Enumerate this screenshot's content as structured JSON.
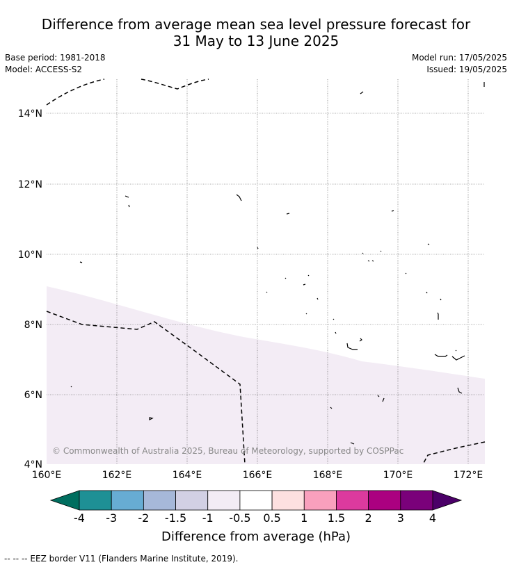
{
  "title_line1": "Difference from average mean sea level pressure forecast for",
  "title_line2": "31 May to 13 June 2025",
  "base_period": "Base period: 1981-2018",
  "model": "Model: ACCESS-S2",
  "model_run": "Model run: 17/05/2025",
  "issued": "Issued: 19/05/2025",
  "map": {
    "lon_range": [
      160,
      172.5
    ],
    "lat_range": [
      4,
      15
    ],
    "lat_ticks": [
      "14°N",
      "12°N",
      "10°N",
      "8°N",
      "6°N",
      "4°N"
    ],
    "lon_ticks": [
      "160°E",
      "162°E",
      "164°E",
      "166°E",
      "168°E",
      "170°E",
      "172°E"
    ],
    "copyright": "© Commonwealth of Australia 2025, Bureau of Meteorology, supported by COSPPac",
    "shaded_region": {
      "category": "-1 to -0.5",
      "color": "#f3ecf5"
    },
    "eez_style": "dashed black"
  },
  "colorbar": {
    "labels": [
      "-4",
      "-3",
      "-2",
      "-1.5",
      "-1",
      "-0.5",
      "0.5",
      "1",
      "1.5",
      "2",
      "3",
      "4"
    ],
    "colors": [
      "#1e9095",
      "#67acd3",
      "#a6b8d9",
      "#d2d0e4",
      "#f3ecf5",
      "#ffffff",
      "#fde0e0",
      "#f9a0bd",
      "#dc3a9e",
      "#ab0080",
      "#7a017a"
    ],
    "under_color": "#006e5f",
    "over_color": "#4b0068",
    "title": "Difference from average (hPa)"
  },
  "footer": "--  --  -- EEZ border V11 (Flanders Marine Institute, 2019)."
}
